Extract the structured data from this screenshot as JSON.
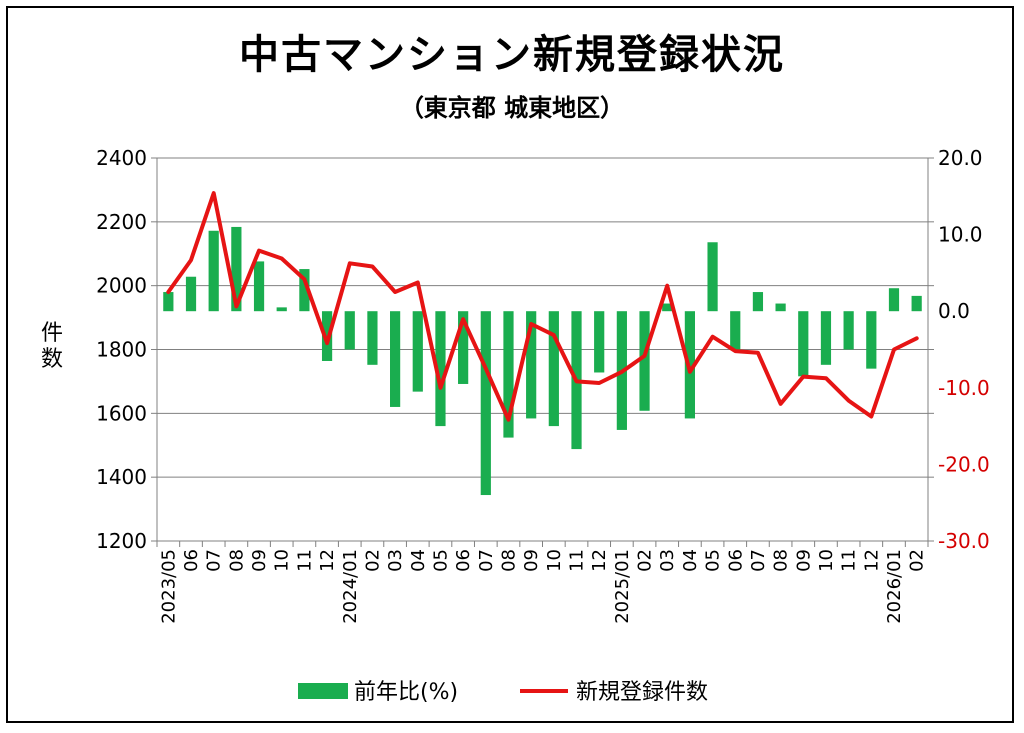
{
  "title": "中古マンション新規登録状況",
  "subtitle": "（東京都 城東地区）",
  "colors": {
    "bar": "#1aad4f",
    "line": "#e61414",
    "negative_tick": "#d40000",
    "grid": "#808080"
  },
  "chart_data": {
    "type": "bar+line",
    "title": "中古マンション新規登録状況",
    "subtitle": "（東京都 城東地区）",
    "ylabel": "件数",
    "ylim": [
      1200,
      2400
    ],
    "y_ticks": [
      1200,
      1400,
      1600,
      1800,
      2000,
      2200,
      2400
    ],
    "y2lim": [
      -30,
      20
    ],
    "y2_ticks": [
      -30,
      -20,
      -10,
      0,
      10,
      20
    ],
    "y2_tick_labels": [
      "-30.0",
      "-20.0",
      "-10.0",
      "0.0",
      "10.0",
      "20.0"
    ],
    "grid": true,
    "legend_position": "bottom",
    "categories": [
      "2023/05",
      "06",
      "07",
      "08",
      "09",
      "10",
      "11",
      "12",
      "2024/01",
      "02",
      "03",
      "04",
      "05",
      "06",
      "07",
      "08",
      "09",
      "10",
      "11",
      "12",
      "2025/01",
      "02",
      "03",
      "04",
      "05",
      "06",
      "07",
      "08",
      "09",
      "10",
      "11",
      "12",
      "2026/01",
      "02"
    ],
    "series": [
      {
        "name": "前年比(%)",
        "type": "bar",
        "axis": "right",
        "values": [
          2.5,
          4.5,
          10.5,
          11.0,
          6.5,
          0.5,
          5.5,
          -6.5,
          -5.0,
          -7.0,
          -12.5,
          -10.5,
          -15.0,
          -9.5,
          -24.0,
          -16.5,
          -14.0,
          -15.0,
          -18.0,
          -8.0,
          -15.5,
          -13.0,
          1.0,
          -14.0,
          9.0,
          -5.0,
          2.5,
          1.0,
          -8.5,
          -7.0,
          -5.0,
          -7.5,
          3.0,
          2.0
        ]
      },
      {
        "name": "新規登録件数",
        "type": "line",
        "axis": "left",
        "values": [
          1980,
          2080,
          2290,
          1935,
          2110,
          2085,
          2020,
          1820,
          2070,
          2060,
          1980,
          2010,
          1680,
          1895,
          1740,
          1580,
          1880,
          1845,
          1700,
          1695,
          1730,
          1780,
          2000,
          1730,
          1840,
          1795,
          1790,
          1630,
          1715,
          1710,
          1640,
          1590,
          1800,
          1835
        ]
      }
    ]
  }
}
